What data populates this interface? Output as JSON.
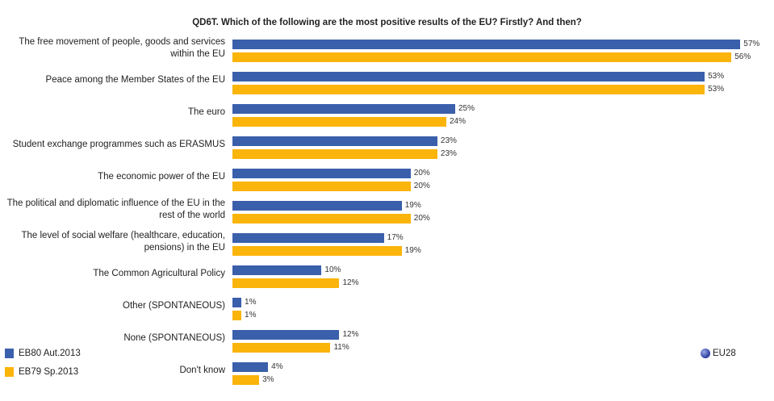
{
  "chart_data": {
    "type": "bar",
    "orientation": "horizontal",
    "title": "QD6T. Which of the following are the most positive results of the EU? Firstly? And then?",
    "categories": [
      "The free movement of people, goods and services within the EU",
      "Peace among the Member States of the EU",
      "The euro",
      "Student exchange programmes such as ERASMUS",
      "The economic power of the EU",
      "The political and diplomatic influence of the EU in the rest of the world",
      "The level of social welfare (healthcare, education, pensions) in the EU",
      "The Common Agricultural Policy",
      "Other (SPONTANEOUS)",
      "None (SPONTANEOUS)",
      "Don't know"
    ],
    "series": [
      {
        "name": "EB80 Aut.2013",
        "color": "#3a5fab",
        "values": [
          57,
          53,
          25,
          23,
          20,
          19,
          17,
          10,
          1,
          12,
          4
        ]
      },
      {
        "name": "EB79 Sp.2013",
        "color": "#fbb40a",
        "values": [
          56,
          53,
          24,
          23,
          20,
          20,
          19,
          12,
          1,
          11,
          3
        ]
      }
    ],
    "value_suffix": "%",
    "legend": "bottom-left",
    "region_label": "EU28",
    "xlim": [
      0,
      57
    ]
  }
}
